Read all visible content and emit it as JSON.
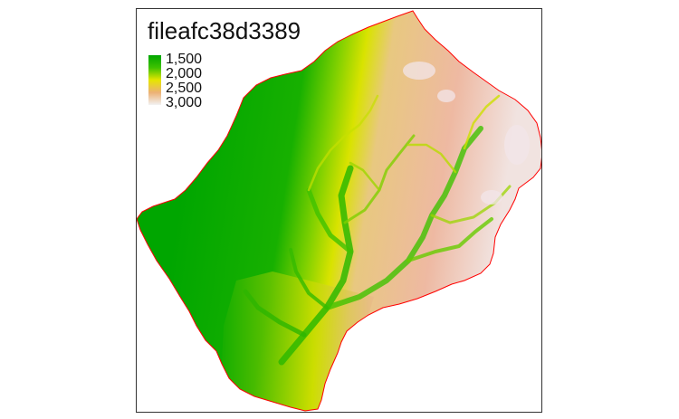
{
  "map": {
    "title": "fileafc38d3389",
    "legend": {
      "labels": [
        "1,500",
        "2,000",
        "2,500",
        "3,000"
      ],
      "colors": [
        "#00a600",
        "#3ec200",
        "#e6e600",
        "#ecb176",
        "#f2f2f2"
      ]
    },
    "boundary_color": "#ff0000",
    "frame_color": "#333333"
  }
}
